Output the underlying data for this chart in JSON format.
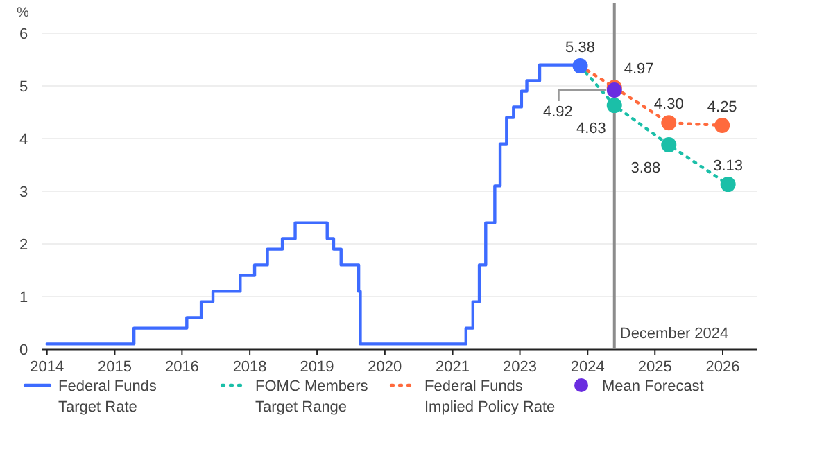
{
  "chart_data": {
    "type": "step",
    "ylabel": "%",
    "ylim": [
      0,
      6
    ],
    "yticks": [
      0,
      1,
      2,
      3,
      4,
      5,
      6
    ],
    "grid": "y",
    "legend": "bottom",
    "xlim": [
      2013.67,
      2027.08
    ],
    "xticks": [
      {
        "value": 2013.77,
        "label": "2014"
      },
      {
        "value": 2015.04,
        "label": "2015"
      },
      {
        "value": 2016.3,
        "label": "2016"
      },
      {
        "value": 2017.57,
        "label": "2018"
      },
      {
        "value": 2018.83,
        "label": "2019"
      },
      {
        "value": 2020.1,
        "label": "2020"
      },
      {
        "value": 2021.37,
        "label": "2021"
      },
      {
        "value": 2022.63,
        "label": "2023"
      },
      {
        "value": 2023.9,
        "label": "2024"
      },
      {
        "value": 2025.16,
        "label": "2025"
      },
      {
        "value": 2026.43,
        "label": "2026"
      }
    ],
    "ref_lines": [
      {
        "axis": "x",
        "value": 2024.4,
        "label": "December 2024",
        "color": "#8c8c8c"
      }
    ],
    "series": [
      {
        "name": "Federal Funds Target Rate",
        "color": "#3d6bff",
        "line_style": "solid",
        "marker": "none",
        "x": [
          2013.77,
          2015.4,
          2016.39,
          2016.66,
          2016.88,
          2017.39,
          2017.66,
          2017.9,
          2018.18,
          2018.42,
          2019.02,
          2019.14,
          2019.28,
          2019.61,
          2019.64,
          2021.62,
          2021.75,
          2021.87,
          2021.99,
          2022.16,
          2022.26,
          2022.38,
          2022.51,
          2022.66,
          2022.76,
          2023,
          2023.76
        ],
        "values": [
          0.1,
          0.4,
          0.6,
          0.9,
          1.1,
          1.4,
          1.6,
          1.9,
          2.1,
          2.4,
          2.1,
          1.9,
          1.6,
          1.1,
          0.1,
          0.4,
          0.9,
          1.6,
          2.4,
          3.1,
          3.9,
          4.4,
          4.6,
          4.9,
          5.1,
          5.4,
          5.4
        ]
      },
      {
        "name": "FOMC Members Target Range",
        "type": "line",
        "color": "#1bbfa8",
        "line_style": "dotted",
        "marker": "circle",
        "x": [
          2023.76,
          2024.4,
          2025.42,
          2026.53
        ],
        "values": [
          5.38,
          4.63,
          3.88,
          3.13
        ],
        "value_labels": [
          null,
          "4.63",
          "3.88",
          "3.13"
        ]
      },
      {
        "name": "Federal Funds Implied Policy Rate",
        "type": "line",
        "color": "#ff6a3d",
        "line_style": "dotted",
        "marker": "circle",
        "x": [
          2023.76,
          2024.4,
          2025.42,
          2026.42
        ],
        "values": [
          5.38,
          4.97,
          4.3,
          4.25
        ],
        "value_labels": [
          null,
          "4.97",
          "4.30",
          "4.25"
        ]
      },
      {
        "type": "scatter",
        "color": "#3d6bff",
        "marker": "circle",
        "x": [
          2023.76
        ],
        "values": [
          5.38
        ],
        "value_labels": [
          "5.38"
        ]
      },
      {
        "name": "Mean Forecast",
        "type": "scatter",
        "color": "#6a2de0",
        "marker": "circle",
        "x": [
          2024.4
        ],
        "values": [
          4.92
        ],
        "value_labels": [
          "4.92"
        ]
      }
    ]
  }
}
